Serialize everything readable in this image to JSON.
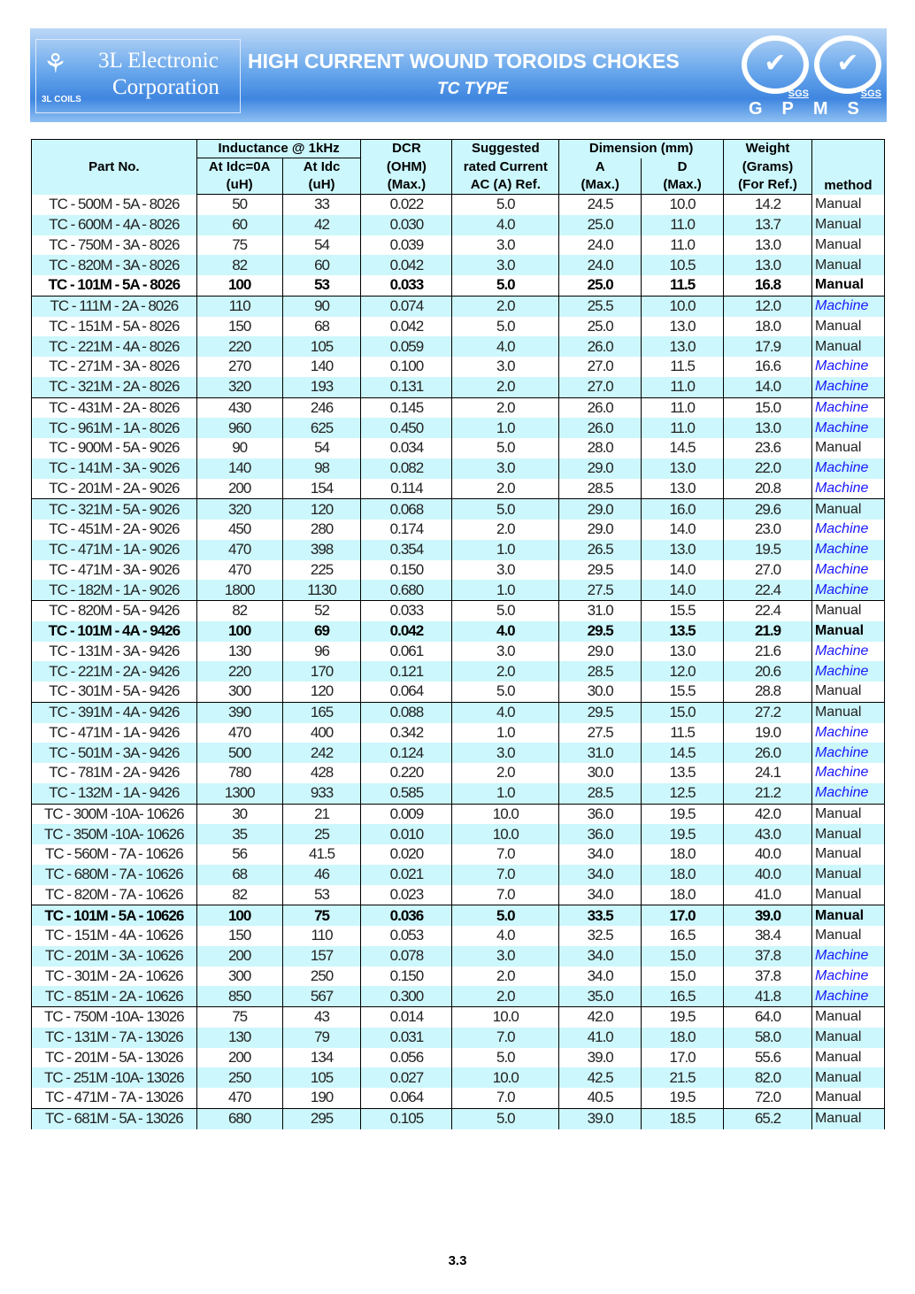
{
  "header": {
    "company_line1": "3L Electronic",
    "company_line2": "Corporation",
    "logo_caption": "3L COILS",
    "title": "HIGH CURRENT WOUND TOROIDS CHOKES",
    "subtitle": "TC TYPE",
    "cert1": "SGS",
    "cert2": "SGS",
    "gpms": "GPMS",
    "colors": {
      "banner": "#4a8fe4",
      "row_alt": "#ccf7fc",
      "machine": "#1a1aff"
    }
  },
  "table": {
    "headers": {
      "part_no": "Part No.",
      "inductance": "Inductance @ 1kHz",
      "at_idc0": "At Idc=0A",
      "at_idc": "At Idc",
      "uh1": "(uH)",
      "uh2": "(uH)",
      "dcr": "DCR",
      "ohm": "(OHM)",
      "dcr_max": "(Max.)",
      "suggested": "Suggested",
      "rated": "rated Current",
      "ac_ref": "AC (A) Ref.",
      "dimension": "Dimension    (mm)",
      "a": "A",
      "a_max": "(Max.)",
      "d": "D",
      "d_max": "(Max.)",
      "weight": "Weight",
      "grams": "(Grams)",
      "for_ref": "(For Ref.)",
      "method": "method"
    },
    "rows": [
      [
        "TC - 500M - 5A - 8026",
        "50",
        "33",
        "0.022",
        "5.0",
        "24.5",
        "10.0",
        "14.2",
        "Manual"
      ],
      [
        "TC - 600M - 4A - 8026",
        "60",
        "42",
        "0.030",
        "4.0",
        "25.0",
        "11.0",
        "13.7",
        "Manual"
      ],
      [
        "TC - 750M - 3A - 8026",
        "75",
        "54",
        "0.039",
        "3.0",
        "24.0",
        "11.0",
        "13.0",
        "Manual"
      ],
      [
        "TC - 820M - 3A - 8026",
        "82",
        "60",
        "0.042",
        "3.0",
        "24.0",
        "10.5",
        "13.0",
        "Manual"
      ],
      [
        "TC - 101M - 5A - 8026",
        "100",
        "53",
        "0.033",
        "5.0",
        "25.0",
        "11.5",
        "16.8",
        "Manual"
      ],
      [
        "TC - 111M - 2A - 8026",
        "110",
        "90",
        "0.074",
        "2.0",
        "25.5",
        "10.0",
        "12.0",
        "Machine"
      ],
      [
        "TC - 151M - 5A - 8026",
        "150",
        "68",
        "0.042",
        "5.0",
        "25.0",
        "13.0",
        "18.0",
        "Manual"
      ],
      [
        "TC - 221M - 4A - 8026",
        "220",
        "105",
        "0.059",
        "4.0",
        "26.0",
        "13.0",
        "17.9",
        "Manual"
      ],
      [
        "TC - 271M - 3A - 8026",
        "270",
        "140",
        "0.100",
        "3.0",
        "27.0",
        "11.5",
        "16.6",
        "Machine"
      ],
      [
        "TC - 321M - 2A - 8026",
        "320",
        "193",
        "0.131",
        "2.0",
        "27.0",
        "11.0",
        "14.0",
        "Machine"
      ],
      [
        "TC - 431M - 2A - 8026",
        "430",
        "246",
        "0.145",
        "2.0",
        "26.0",
        "11.0",
        "15.0",
        "Machine"
      ],
      [
        "TC - 961M - 1A - 8026",
        "960",
        "625",
        "0.450",
        "1.0",
        "26.0",
        "11.0",
        "13.0",
        "Machine"
      ],
      [
        "TC - 900M - 5A - 9026",
        "90",
        "54",
        "0.034",
        "5.0",
        "28.0",
        "14.5",
        "23.6",
        "Manual"
      ],
      [
        "TC - 141M - 3A - 9026",
        "140",
        "98",
        "0.082",
        "3.0",
        "29.0",
        "13.0",
        "22.0",
        "Machine"
      ],
      [
        "TC - 201M - 2A - 9026",
        "200",
        "154",
        "0.114",
        "2.0",
        "28.5",
        "13.0",
        "20.8",
        "Machine"
      ],
      [
        "TC - 321M - 5A - 9026",
        "320",
        "120",
        "0.068",
        "5.0",
        "29.0",
        "16.0",
        "29.6",
        "Manual"
      ],
      [
        "TC - 451M - 2A - 9026",
        "450",
        "280",
        "0.174",
        "2.0",
        "29.0",
        "14.0",
        "23.0",
        "Machine"
      ],
      [
        "TC - 471M - 1A - 9026",
        "470",
        "398",
        "0.354",
        "1.0",
        "26.5",
        "13.0",
        "19.5",
        "Machine"
      ],
      [
        "TC - 471M - 3A - 9026",
        "470",
        "225",
        "0.150",
        "3.0",
        "29.5",
        "14.0",
        "27.0",
        "Machine"
      ],
      [
        "TC - 182M - 1A - 9026",
        "1800",
        "1130",
        "0.680",
        "1.0",
        "27.5",
        "14.0",
        "22.4",
        "Machine"
      ],
      [
        "TC - 820M - 5A - 9426",
        "82",
        "52",
        "0.033",
        "5.0",
        "31.0",
        "15.5",
        "22.4",
        "Manual"
      ],
      [
        "TC - 101M - 4A - 9426",
        "100",
        "69",
        "0.042",
        "4.0",
        "29.5",
        "13.5",
        "21.9",
        "Manual"
      ],
      [
        "TC - 131M - 3A - 9426",
        "130",
        "96",
        "0.061",
        "3.0",
        "29.0",
        "13.0",
        "21.6",
        "Machine"
      ],
      [
        "TC - 221M - 2A - 9426",
        "220",
        "170",
        "0.121",
        "2.0",
        "28.5",
        "12.0",
        "20.6",
        "Machine"
      ],
      [
        "TC - 301M - 5A - 9426",
        "300",
        "120",
        "0.064",
        "5.0",
        "30.0",
        "15.5",
        "28.8",
        "Manual"
      ],
      [
        "TC - 391M - 4A - 9426",
        "390",
        "165",
        "0.088",
        "4.0",
        "29.5",
        "15.0",
        "27.2",
        "Manual"
      ],
      [
        "TC - 471M - 1A - 9426",
        "470",
        "400",
        "0.342",
        "1.0",
        "27.5",
        "11.5",
        "19.0",
        "Machine"
      ],
      [
        "TC - 501M - 3A - 9426",
        "500",
        "242",
        "0.124",
        "3.0",
        "31.0",
        "14.5",
        "26.0",
        "Machine"
      ],
      [
        "TC - 781M - 2A - 9426",
        "780",
        "428",
        "0.220",
        "2.0",
        "30.0",
        "13.5",
        "24.1",
        "Machine"
      ],
      [
        "TC - 132M - 1A - 9426",
        "1300",
        "933",
        "0.585",
        "1.0",
        "28.5",
        "12.5",
        "21.2",
        "Machine"
      ],
      [
        "TC - 300M -10A- 10626",
        "30",
        "21",
        "0.009",
        "10.0",
        "36.0",
        "19.5",
        "42.0",
        "Manual"
      ],
      [
        "TC - 350M -10A- 10626",
        "35",
        "25",
        "0.010",
        "10.0",
        "36.0",
        "19.5",
        "43.0",
        "Manual"
      ],
      [
        "TC - 560M - 7A - 10626",
        "56",
        "41.5",
        "0.020",
        "7.0",
        "34.0",
        "18.0",
        "40.0",
        "Manual"
      ],
      [
        "TC - 680M - 7A - 10626",
        "68",
        "46",
        "0.021",
        "7.0",
        "34.0",
        "18.0",
        "40.0",
        "Manual"
      ],
      [
        "TC - 820M - 7A - 10626",
        "82",
        "53",
        "0.023",
        "7.0",
        "34.0",
        "18.0",
        "41.0",
        "Manual"
      ],
      [
        "TC - 101M - 5A - 10626",
        "100",
        "75",
        "0.036",
        "5.0",
        "33.5",
        "17.0",
        "39.0",
        "Manual"
      ],
      [
        "TC - 151M - 4A - 10626",
        "150",
        "110",
        "0.053",
        "4.0",
        "32.5",
        "16.5",
        "38.4",
        "Manual"
      ],
      [
        "TC - 201M - 3A - 10626",
        "200",
        "157",
        "0.078",
        "3.0",
        "34.0",
        "15.0",
        "37.8",
        "Machine"
      ],
      [
        "TC - 301M - 2A - 10626",
        "300",
        "250",
        "0.150",
        "2.0",
        "34.0",
        "15.0",
        "37.8",
        "Machine"
      ],
      [
        "TC - 851M - 2A - 10626",
        "850",
        "567",
        "0.300",
        "2.0",
        "35.0",
        "16.5",
        "41.8",
        "Machine"
      ],
      [
        "TC - 750M -10A- 13026",
        "75",
        "43",
        "0.014",
        "10.0",
        "42.0",
        "19.5",
        "64.0",
        "Manual"
      ],
      [
        "TC - 131M - 7A - 13026",
        "130",
        "79",
        "0.031",
        "7.0",
        "41.0",
        "18.0",
        "58.0",
        "Manual"
      ],
      [
        "TC - 201M - 5A - 13026",
        "200",
        "134",
        "0.056",
        "5.0",
        "39.0",
        "17.0",
        "55.6",
        "Manual"
      ],
      [
        "TC - 251M -10A- 13026",
        "250",
        "105",
        "0.027",
        "10.0",
        "42.5",
        "21.5",
        "82.0",
        "Manual"
      ],
      [
        "TC - 471M - 7A - 13026",
        "470",
        "190",
        "0.064",
        "7.0",
        "40.5",
        "19.5",
        "72.0",
        "Manual"
      ],
      [
        "TC - 681M - 5A - 13026",
        "680",
        "295",
        "0.105",
        "5.0",
        "39.0",
        "18.5",
        "65.2",
        "Manual"
      ]
    ],
    "bold_rows": [
      4,
      21,
      35
    ]
  },
  "footer": {
    "page_number": "3.3"
  }
}
